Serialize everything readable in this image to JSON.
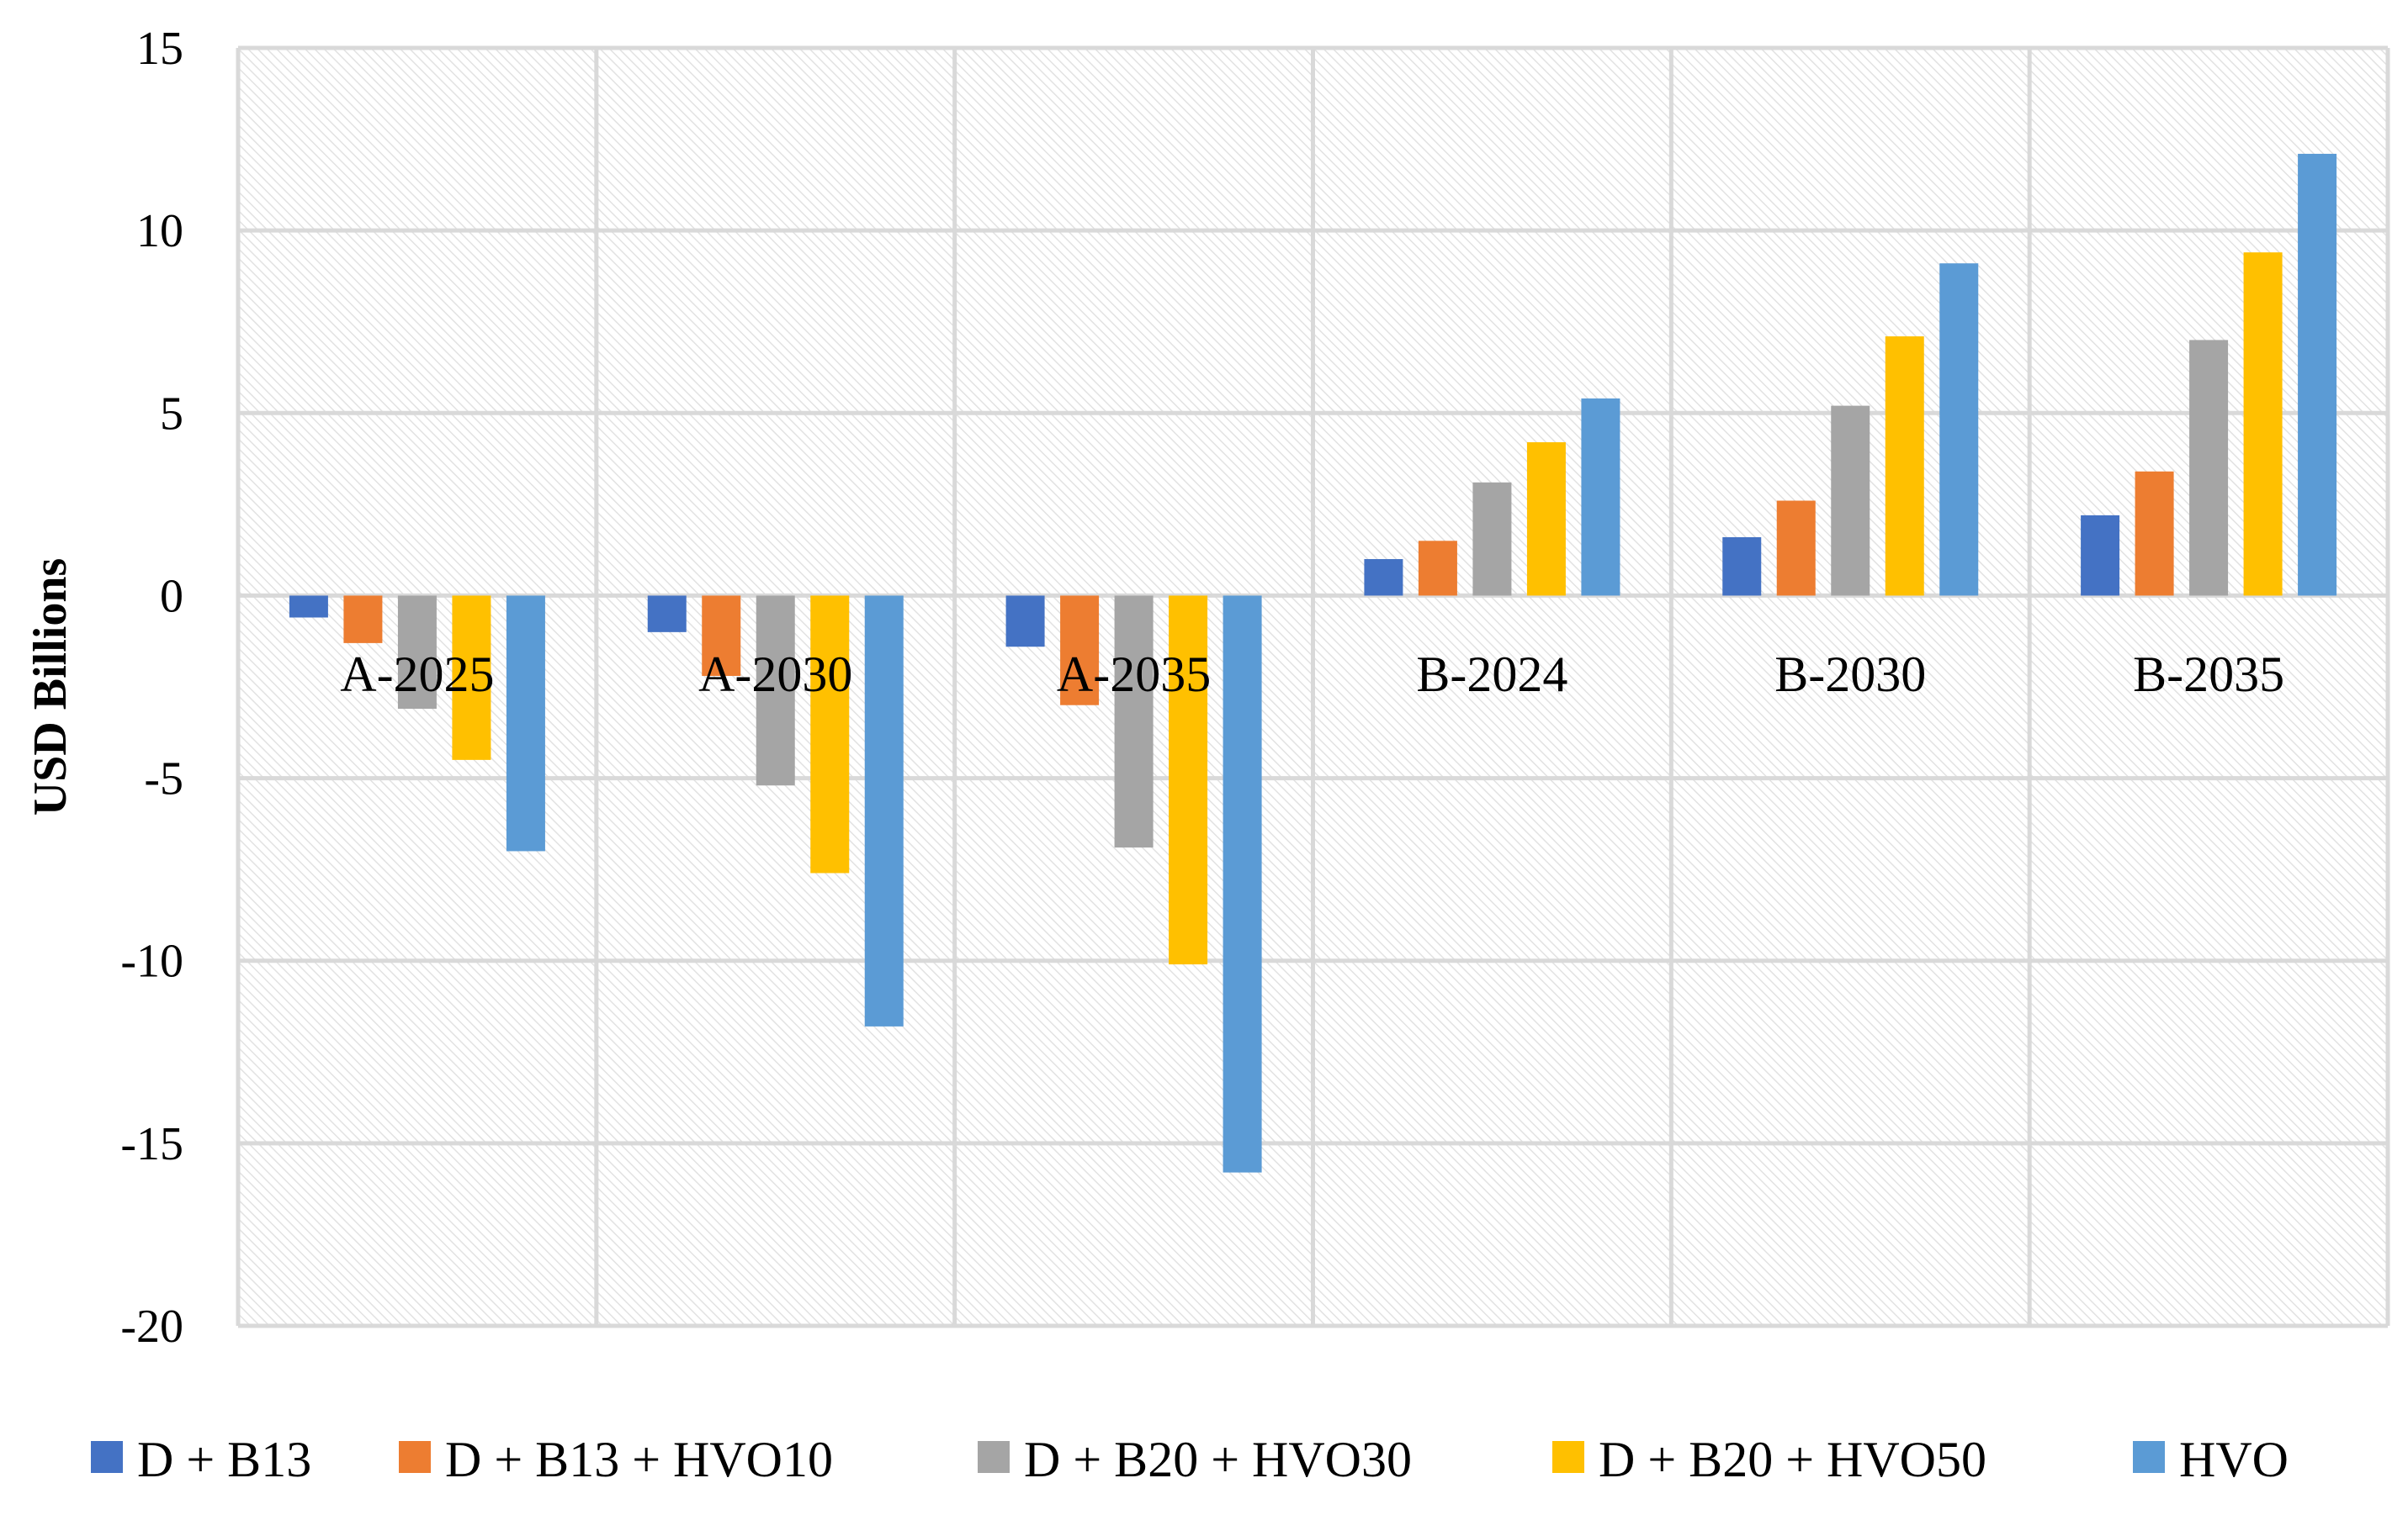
{
  "chart_data": {
    "type": "bar",
    "title": "",
    "xlabel": "",
    "ylabel": "USD Billions",
    "ylim": [
      -20,
      15
    ],
    "yticks": [
      15,
      10,
      5,
      0,
      -5,
      -10,
      -15,
      -20
    ],
    "grid": true,
    "legend_position": "bottom",
    "categories": [
      "A-2025",
      "A-2030",
      "A-2035",
      "B-2024",
      "B-2030",
      "B-2035"
    ],
    "series": [
      {
        "name": "D + B13",
        "color": "#4472C4",
        "values": [
          -0.6,
          -1.0,
          -1.4,
          1.0,
          1.6,
          2.2
        ]
      },
      {
        "name": "D + B13 + HVO10",
        "color": "#ED7D31",
        "values": [
          -1.3,
          -2.2,
          -3.0,
          1.5,
          2.6,
          3.4
        ]
      },
      {
        "name": "D + B20 + HVO30",
        "color": "#A5A5A5",
        "values": [
          -3.1,
          -5.2,
          -6.9,
          3.1,
          5.2,
          7.0
        ]
      },
      {
        "name": "D + B20 + HVO50",
        "color": "#FFC000",
        "values": [
          -4.5,
          -7.6,
          -10.1,
          4.2,
          7.1,
          9.4
        ]
      },
      {
        "name": "HVO",
        "color": "#5B9BD5",
        "values": [
          -7.0,
          -11.8,
          -15.8,
          5.4,
          9.1,
          12.1
        ]
      }
    ]
  }
}
